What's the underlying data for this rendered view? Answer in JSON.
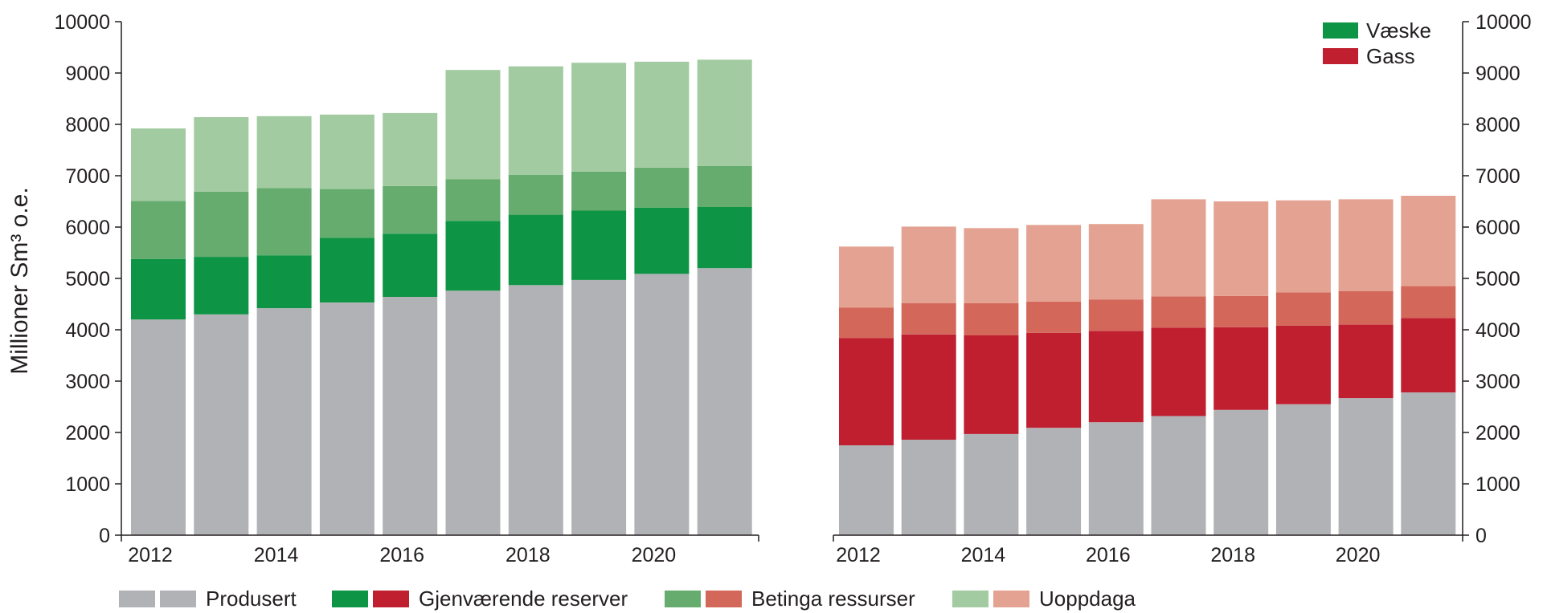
{
  "chart_data": [
    {
      "type": "bar",
      "stacked": true,
      "panel": "Væske",
      "x": [
        2012,
        2013,
        2014,
        2015,
        2016,
        2017,
        2018,
        2019,
        2020,
        2021
      ],
      "x_tick_labels": [
        "2012",
        "2014",
        "2016",
        "2018",
        "2020"
      ],
      "ylim": [
        0,
        10000
      ],
      "y_ticks": [
        "0",
        "1000",
        "2000",
        "3000",
        "4000",
        "5000",
        "6000",
        "7000",
        "8000",
        "9000",
        "10000"
      ],
      "ylabel": "Millioner Sm³ o.e.",
      "series": [
        {
          "name": "Produsert",
          "color": "#b1b2b6",
          "values": [
            4200,
            4300,
            4420,
            4530,
            4640,
            4760,
            4870,
            4970,
            5090,
            5200
          ]
        },
        {
          "name": "Gjenværende reserver",
          "color": "#0d9444",
          "values": [
            1180,
            1120,
            1030,
            1260,
            1230,
            1360,
            1370,
            1350,
            1290,
            1190
          ]
        },
        {
          "name": "Betinga ressurser",
          "color": "#66ac6e",
          "values": [
            1130,
            1270,
            1310,
            950,
            930,
            810,
            780,
            760,
            780,
            800
          ]
        },
        {
          "name": "Uoppdaga",
          "color": "#a3cba2",
          "values": [
            1410,
            1450,
            1400,
            1450,
            1420,
            2130,
            2110,
            2120,
            2060,
            2070
          ]
        }
      ]
    },
    {
      "type": "bar",
      "stacked": true,
      "panel": "Gass",
      "x": [
        2012,
        2013,
        2014,
        2015,
        2016,
        2017,
        2018,
        2019,
        2020,
        2021
      ],
      "x_tick_labels": [
        "2012",
        "2014",
        "2016",
        "2018",
        "2020"
      ],
      "ylim": [
        0,
        10000
      ],
      "y_ticks": [
        "0",
        "1000",
        "2000",
        "3000",
        "4000",
        "5000",
        "6000",
        "7000",
        "8000",
        "9000",
        "10000"
      ],
      "series": [
        {
          "name": "Produsert",
          "color": "#b1b2b6",
          "values": [
            1750,
            1860,
            1970,
            2090,
            2200,
            2320,
            2440,
            2550,
            2670,
            2780
          ]
        },
        {
          "name": "Gjenværende reserver",
          "color": "#c01f30",
          "values": [
            2090,
            2050,
            1920,
            1850,
            1780,
            1720,
            1610,
            1530,
            1430,
            1450
          ]
        },
        {
          "name": "Betinga ressurser",
          "color": "#d3675a",
          "values": [
            590,
            610,
            630,
            610,
            610,
            610,
            610,
            650,
            650,
            620
          ]
        },
        {
          "name": "Uoppdaga",
          "color": "#e4a392",
          "values": [
            1190,
            1490,
            1460,
            1490,
            1470,
            1890,
            1840,
            1790,
            1790,
            1760
          ]
        }
      ]
    }
  ],
  "panel_legend": [
    {
      "label": "Væske",
      "color": "#0d9444"
    },
    {
      "label": "Gass",
      "color": "#c01f30"
    }
  ],
  "bottom_legend": [
    {
      "label": "Produsert",
      "colors": [
        "#b1b2b6",
        "#b1b2b6"
      ]
    },
    {
      "label": "Gjenværende reserver",
      "colors": [
        "#0d9444",
        "#c01f30"
      ]
    },
    {
      "label": "Betinga ressurser",
      "colors": [
        "#66ac6e",
        "#d3675a"
      ]
    },
    {
      "label": "Uoppdaga",
      "colors": [
        "#a3cba2",
        "#e4a392"
      ]
    }
  ]
}
